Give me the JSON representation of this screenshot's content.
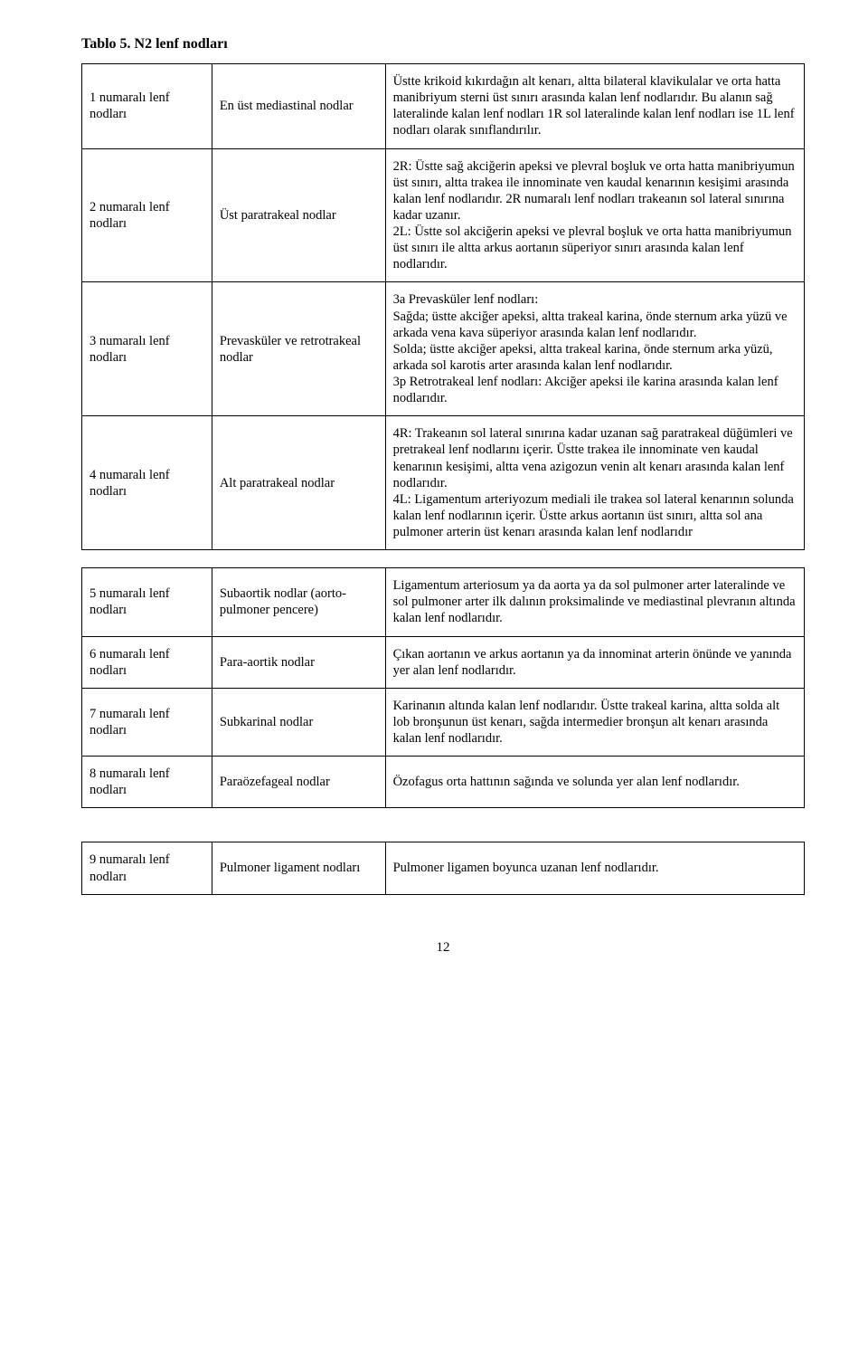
{
  "title": "Tablo 5. N2 lenf nodları",
  "rows": [
    {
      "c1": "1 numaralı lenf nodları",
      "c2": "En üst mediastinal nodlar",
      "c3": "Üstte krikoid kıkırdağın alt kenarı, altta bilateral klavikulalar ve orta hatta manibriyum sterni üst sınırı arasında kalan lenf nodlarıdır. Bu alanın sağ lateralinde kalan lenf nodları 1R sol lateralinde kalan lenf nodları ise 1L lenf nodları olarak sınıflandırılır."
    },
    {
      "c1": "2 numaralı lenf nodları",
      "c2": "Üst paratrakeal nodlar",
      "c3": "2R: Üstte sağ akciğerin apeksi ve plevral boşluk ve orta hatta manibriyumun üst sınırı, altta trakea ile innominate ven kaudal kenarının kesişimi arasında kalan lenf nodlarıdır. 2R numaralı lenf nodları trakeanın sol lateral sınırına kadar uzanır.\n2L: Üstte sol akciğerin apeksi ve plevral boşluk ve orta hatta manibriyumun üst sınırı ile altta arkus aortanın süperiyor sınırı arasında kalan lenf nodlarıdır."
    },
    {
      "c1": "3 numaralı lenf nodları",
      "c2": "Prevasküler ve retrotrakeal nodlar",
      "c3": "3a Prevasküler lenf nodları:\nSağda; üstte akciğer apeksi, altta trakeal karina, önde sternum arka yüzü ve arkada vena kava süperiyor arasında kalan lenf nodlarıdır.\nSolda; üstte akciğer apeksi, altta trakeal karina, önde sternum arka yüzü, arkada sol karotis arter arasında kalan lenf nodlarıdır.\n3p Retrotrakeal lenf nodları: Akciğer apeksi ile karina arasında kalan lenf nodlarıdır."
    },
    {
      "c1": "4 numaralı lenf nodları",
      "c2": "Alt paratrakeal nodlar",
      "c3": "4R: Trakeanın sol lateral sınırına kadar uzanan sağ paratrakeal düğümleri ve pretrakeal lenf nodlarını içerir. Üstte trakea ile  innominate ven kaudal kenarının kesişimi, altta vena azigozun venin alt kenarı arasında kalan lenf nodlarıdır.\n4L: Ligamentum arteriyozum mediali ile trakea sol lateral kenarının solunda kalan lenf nodlarının içerir. Üstte arkus aortanın üst sınırı, altta sol ana pulmoner arterin üst kenarı arasında kalan lenf nodlarıdır"
    },
    {
      "c1": "5 numaralı lenf nodları",
      "c2": "Subaortik nodlar (aorto-pulmoner pencere)",
      "c3": "Ligamentum arteriosum ya da aorta ya da sol pulmoner arter lateralinde ve sol pulmoner arter ilk dalının proksimalinde ve mediastinal plevranın altında kalan lenf nodlarıdır."
    },
    {
      "c1": "6 numaralı lenf nodları",
      "c2": "Para-aortik nodlar",
      "c3": "Çıkan aortanın ve arkus aortanın ya da innominat arterin önünde ve yanında yer alan lenf nodlarıdır."
    },
    {
      "c1": "7 numaralı lenf nodları",
      "c2": "Subkarinal nodlar",
      "c3": "Karinanın altında kalan lenf nodlarıdır. Üstte trakeal karina, altta solda alt lob bronşunun üst kenarı, sağda intermedier bronşun alt kenarı arasında kalan lenf nodlarıdır."
    },
    {
      "c1": "8 numaralı lenf nodları",
      "c2": "Paraözefageal nodlar",
      "c3": "Özofagus orta hattının sağında ve solunda yer alan lenf nodlarıdır."
    },
    {
      "c1": "9 numaralı lenf nodları",
      "c2": "Pulmoner ligament nodları",
      "c3": "Pulmoner ligamen boyunca uzanan lenf nodlarıdır."
    }
  ],
  "page_number": "12"
}
